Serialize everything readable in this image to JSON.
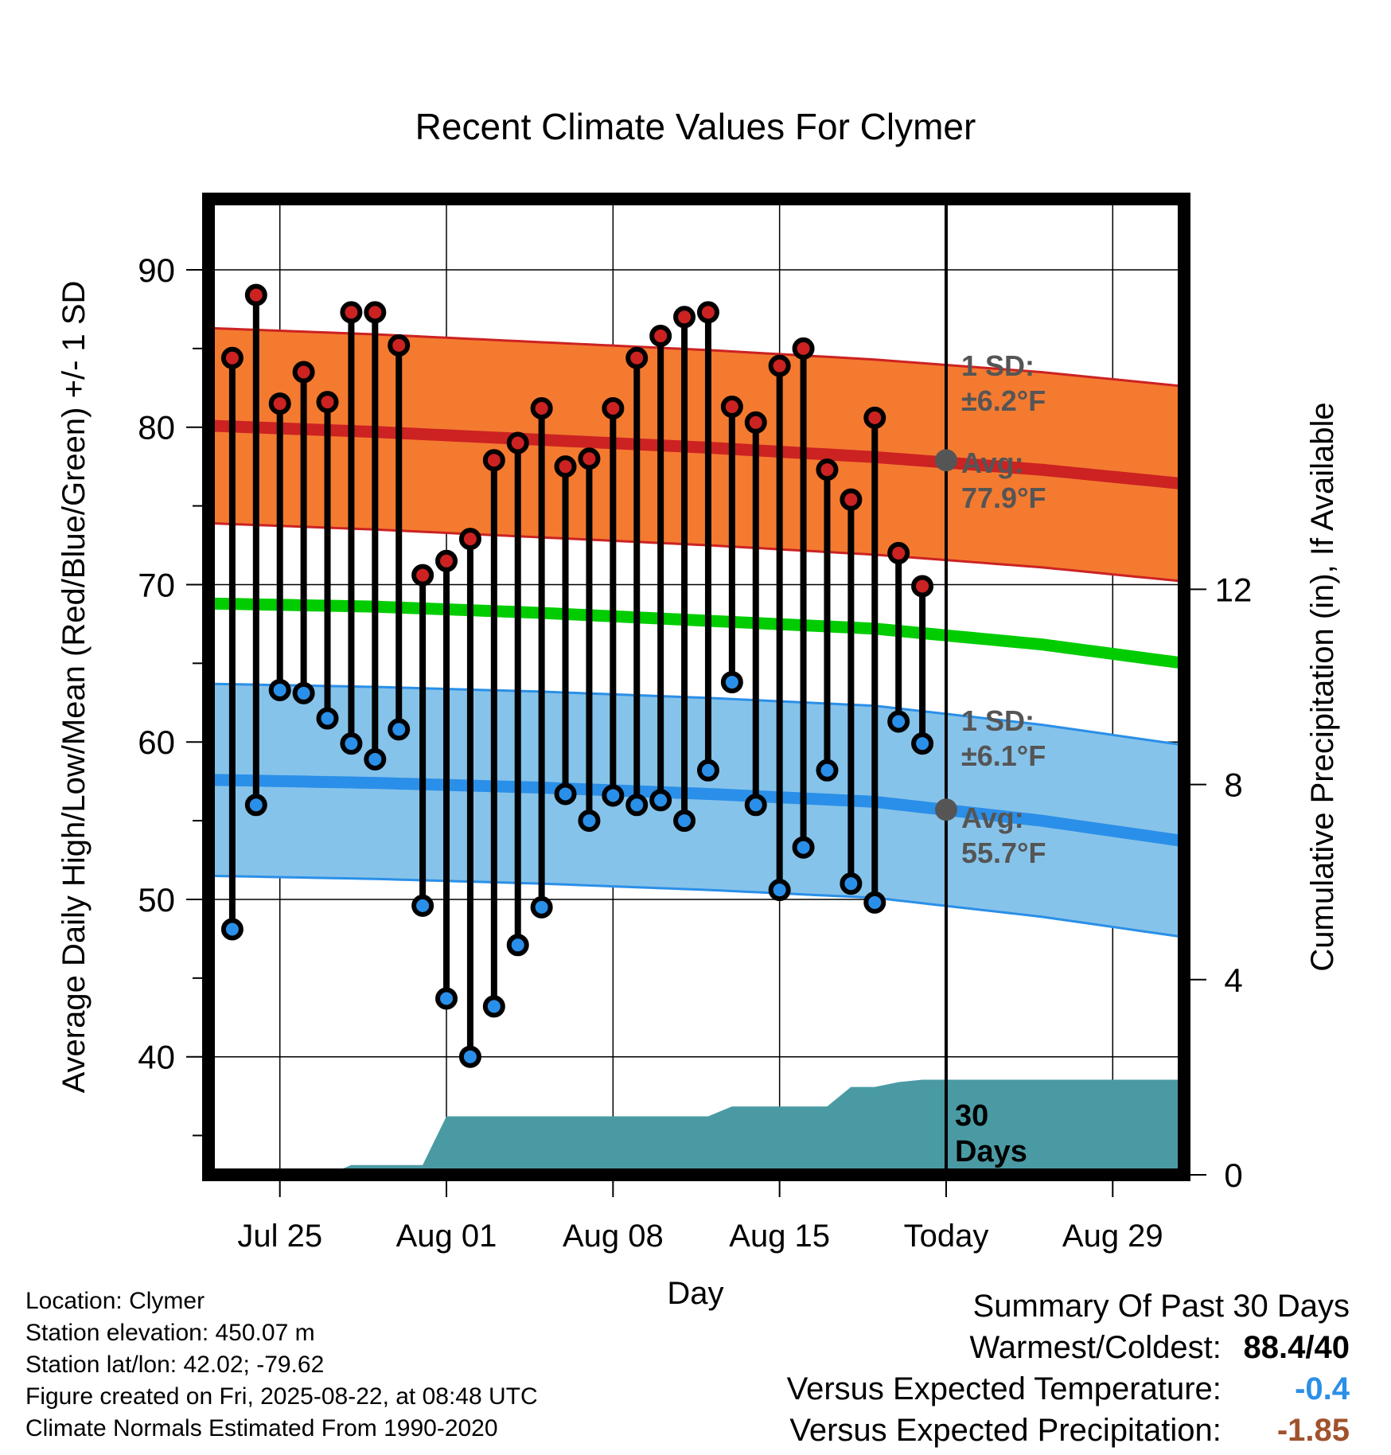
{
  "chart_data": {
    "type": "line",
    "title": "Recent Climate Values For Clymer",
    "xlabel": "Day",
    "ylabel": "Average Daily High/Low/Mean (Red/Blue/Green) +/- 1 SD",
    "y2label": "Cumulative Precipitation (in), If Available",
    "ylim": [
      32.5,
      94.5
    ],
    "y2lim": [
      0,
      20
    ],
    "y_ticks": [
      "90",
      "80",
      "70",
      "60",
      "50",
      "40"
    ],
    "y_tick_values": [
      90,
      80,
      70,
      60,
      50,
      40
    ],
    "y2_ticks": [
      "12",
      "8",
      "4",
      "0"
    ],
    "y2_tick_values": [
      12,
      8,
      4,
      0
    ],
    "x_range": [
      "2025-07-22",
      "2025-09-01"
    ],
    "x_ticks": [
      {
        "date": "2025-07-25",
        "label": "Jul 25"
      },
      {
        "date": "2025-08-01",
        "label": "Aug 01"
      },
      {
        "date": "2025-08-08",
        "label": "Aug 08"
      },
      {
        "date": "2025-08-15",
        "label": "Aug 15"
      },
      {
        "date": "2025-08-22",
        "label": "Today"
      },
      {
        "date": "2025-08-29",
        "label": "Aug 29"
      }
    ],
    "today": "2025-08-22",
    "grid": true,
    "observed_dates": [
      "2025-07-23",
      "2025-07-24",
      "2025-07-25",
      "2025-07-26",
      "2025-07-27",
      "2025-07-28",
      "2025-07-29",
      "2025-07-30",
      "2025-07-31",
      "2025-08-01",
      "2025-08-02",
      "2025-08-03",
      "2025-08-04",
      "2025-08-05",
      "2025-08-06",
      "2025-08-07",
      "2025-08-08",
      "2025-08-09",
      "2025-08-10",
      "2025-08-11",
      "2025-08-12",
      "2025-08-13",
      "2025-08-14",
      "2025-08-15",
      "2025-08-16",
      "2025-08-17",
      "2025-08-18",
      "2025-08-19",
      "2025-08-20",
      "2025-08-21"
    ],
    "series": [
      {
        "name": "High",
        "color": "#cc2222",
        "values": [
          84.4,
          88.4,
          81.5,
          83.5,
          81.6,
          87.3,
          87.3,
          85.2,
          70.6,
          71.5,
          72.9,
          77.9,
          79.0,
          81.2,
          77.5,
          78.0,
          81.2,
          84.4,
          85.8,
          87.0,
          87.3,
          81.3,
          80.3,
          83.9,
          85.0,
          77.3,
          75.4,
          80.6,
          72.0,
          69.9
        ]
      },
      {
        "name": "Low",
        "color": "#2a8fe8",
        "values": [
          48.1,
          56.0,
          63.3,
          63.1,
          61.5,
          59.9,
          58.9,
          60.8,
          49.6,
          43.7,
          40.0,
          43.2,
          47.1,
          49.5,
          56.7,
          55.0,
          56.6,
          56.0,
          56.3,
          55.0,
          58.2,
          63.8,
          56.0,
          50.6,
          53.3,
          58.2,
          51.0,
          49.8,
          61.3,
          59.9
        ]
      }
    ],
    "normals": {
      "dates": [
        "2025-07-22",
        "2025-07-29",
        "2025-08-05",
        "2025-08-12",
        "2025-08-19",
        "2025-08-26",
        "2025-09-01"
      ],
      "high_avg": [
        80.1,
        79.7,
        79.2,
        78.7,
        78.1,
        77.3,
        76.4
      ],
      "high_sd": 6.2,
      "low_avg": [
        57.6,
        57.4,
        57.1,
        56.7,
        56.2,
        55.0,
        53.7
      ],
      "low_sd": 6.1,
      "mean_avg": [
        68.8,
        68.6,
        68.2,
        67.7,
        67.2,
        66.2,
        65.0
      ]
    },
    "precipitation": {
      "dates": [
        "2025-07-22",
        "2025-07-27",
        "2025-07-28",
        "2025-07-31",
        "2025-08-01",
        "2025-08-12",
        "2025-08-13",
        "2025-08-17",
        "2025-08-18",
        "2025-08-19",
        "2025-08-20",
        "2025-08-21",
        "2025-09-01"
      ],
      "values": [
        0,
        0,
        0.2,
        0.2,
        1.2,
        1.2,
        1.4,
        1.4,
        1.8,
        1.8,
        1.9,
        1.95,
        1.95
      ]
    },
    "annotations": {
      "high_sd_label": "1 SD:",
      "high_sd_value": "±6.2°F",
      "high_avg_label": "Avg:",
      "high_avg_value": "77.9°F",
      "high_avg_today": 77.9,
      "low_sd_label": "1 SD:",
      "low_sd_value": "±6.1°F",
      "low_avg_label": "Avg:",
      "low_avg_value": "55.7°F",
      "low_avg_today": 55.7,
      "days_line1": "30",
      "days_line2": "Days"
    }
  },
  "footer": {
    "location": "Location: Clymer",
    "elevation": "Station elevation: 450.07 m",
    "latlon": "Station lat/lon: 42.02; -79.62",
    "created": "Figure created on Fri, 2025-08-22, at 08:48 UTC",
    "normals": "Climate Normals Estimated From 1990-2020"
  },
  "summary": {
    "title": "Summary Of Past 30 Days",
    "warmest_label": "Warmest/Coldest:",
    "warmest_value": "88.4/40",
    "temp_label": "Versus Expected Temperature:",
    "temp_value": "-0.4",
    "temp_color": "#2a8fe8",
    "precip_label": "Versus Expected Precipitation:",
    "precip_value": "-1.85",
    "precip_color": "#a0522d"
  },
  "colors": {
    "high_band": "#f47a30",
    "high_line": "#cc2222",
    "low_band": "#86c3ea",
    "low_line": "#2a8fe8",
    "mean_line": "#00cc00",
    "precip_fill": "#4a9aa4",
    "avg_dot": "#555555"
  }
}
